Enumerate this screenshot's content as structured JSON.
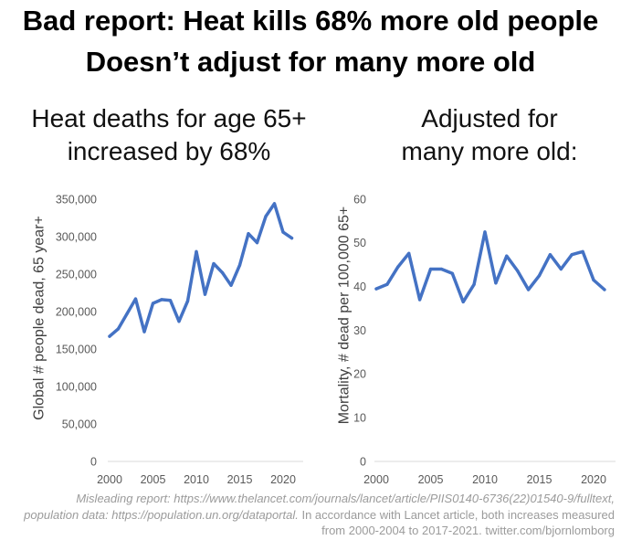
{
  "header": {
    "title_line1": "Bad report: Heat kills 68% more old people",
    "title_line2": "Doesn’t adjust for many more old"
  },
  "chart_data": [
    {
      "type": "line",
      "title": [
        "Heat deaths for age 65+",
        "increased by 68%"
      ],
      "ylabel": "Global # people dead, 65 year+",
      "x": [
        2000,
        2001,
        2002,
        2003,
        2004,
        2005,
        2006,
        2007,
        2008,
        2009,
        2010,
        2011,
        2012,
        2013,
        2014,
        2015,
        2016,
        2017,
        2018,
        2019,
        2020,
        2021
      ],
      "series": [
        {
          "values": [
            167000,
            177000,
            197000,
            217000,
            173000,
            211000,
            216000,
            215000,
            187000,
            214000,
            280000,
            223000,
            264000,
            252000,
            235000,
            262000,
            304000,
            292000,
            327000,
            344000,
            306000,
            298000
          ]
        }
      ],
      "xlim": [
        2000,
        2021
      ],
      "ylim": [
        0,
        350000
      ],
      "x_ticks": [
        2000,
        2005,
        2010,
        2015,
        2020
      ],
      "x_tick_labels": [
        "2000",
        "2005",
        "2010",
        "2015",
        "2020"
      ],
      "y_ticks": [
        0,
        50000,
        100000,
        150000,
        200000,
        250000,
        300000,
        350000
      ],
      "y_tick_labels": [
        "0",
        "50,000",
        "100,000",
        "150,000",
        "200,000",
        "250,000",
        "300,000",
        "350,000"
      ],
      "grid": false,
      "legend": "none",
      "line_color": "#4472C4"
    },
    {
      "type": "line",
      "title": [
        "Adjusted for",
        "many more old:"
      ],
      "ylabel": "Mortality, # dead per 100,000 65+",
      "x": [
        2000,
        2001,
        2002,
        2003,
        2004,
        2005,
        2006,
        2007,
        2008,
        2009,
        2010,
        2011,
        2012,
        2013,
        2014,
        2015,
        2016,
        2017,
        2018,
        2019,
        2020,
        2021
      ],
      "series": [
        {
          "values": [
            39.5,
            40.5,
            44.5,
            47.6,
            37.0,
            44.0,
            44.0,
            43.0,
            36.5,
            40.5,
            52.5,
            40.8,
            47.0,
            43.6,
            39.3,
            42.5,
            47.3,
            44.0,
            47.3,
            48.0,
            41.5,
            39.3
          ]
        }
      ],
      "xlim": [
        2000,
        2021
      ],
      "ylim": [
        0,
        60
      ],
      "x_ticks": [
        2000,
        2005,
        2010,
        2015,
        2020
      ],
      "x_tick_labels": [
        "2000",
        "2005",
        "2010",
        "2015",
        "2020"
      ],
      "y_ticks": [
        0,
        10,
        20,
        30,
        40,
        50,
        60
      ],
      "y_tick_labels": [
        "0",
        "10",
        "20",
        "30",
        "40",
        "50",
        "60"
      ],
      "grid": false,
      "legend": "none",
      "line_color": "#4472C4"
    }
  ],
  "footer": {
    "line1": "Misleading report: https://www.thelancet.com/journals/lancet/article/PIIS0140-6736(22)01540-9/fulltext,",
    "line2_italic": "population data: https://population.un.org/dataportal.",
    "line2_regular": "In accordance with Lancet article, both increases measured",
    "line3": "from 2000-2004 to 2017-2021. twitter.com/bjornlomborg"
  }
}
